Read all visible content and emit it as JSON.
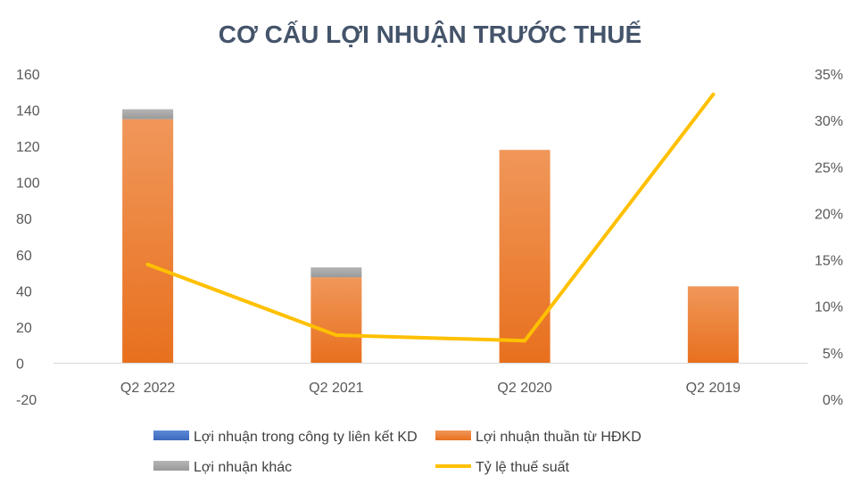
{
  "chart_data": {
    "type": "bar",
    "title": "CƠ CẤU LỢI NHUẬN TRƯỚC THUẾ",
    "categories": [
      "Q2 2022",
      "Q2 2021",
      "Q2 2020",
      "Q2 2019"
    ],
    "stacked": true,
    "series": [
      {
        "name": "Lợi nhuận trong công ty liên kết KD",
        "type": "bar",
        "axis": "left",
        "color": "#4472c4",
        "values": [
          0,
          0,
          0,
          0
        ]
      },
      {
        "name": "Lợi nhuận thuần từ HĐKD",
        "type": "bar",
        "axis": "left",
        "color": "#ed7d31",
        "values": [
          135,
          47.5,
          118,
          42.5
        ]
      },
      {
        "name": "Lợi nhuận khác",
        "type": "bar",
        "axis": "left",
        "color": "#a5a5a5",
        "values": [
          5.5,
          5.5,
          0,
          0
        ]
      },
      {
        "name": "Tỷ lệ thuế suất",
        "type": "line",
        "axis": "right",
        "color": "#ffc000",
        "values": [
          0.145,
          0.069,
          0.063,
          0.328
        ]
      }
    ],
    "y_left": {
      "min": -20,
      "max": 160,
      "step": 20,
      "ticks": [
        "-20",
        "0",
        "20",
        "40",
        "60",
        "80",
        "100",
        "120",
        "140",
        "160"
      ]
    },
    "y_right": {
      "min": 0,
      "max": 0.35,
      "step": 0.05,
      "ticks": [
        "0%",
        "5%",
        "10%",
        "15%",
        "20%",
        "25%",
        "30%",
        "35%"
      ]
    },
    "grid": false,
    "legend_position": "bottom",
    "legend": [
      {
        "label": "Lợi nhuận trong công ty liên kết KD",
        "kind": "bar",
        "color": "#4472c4"
      },
      {
        "label": "Lợi nhuận thuần từ HĐKD",
        "kind": "bar",
        "color": "#ed7d31"
      },
      {
        "label": "Lợi nhuận khác",
        "kind": "bar",
        "color": "#a5a5a5"
      },
      {
        "label": "Tỷ lệ thuế suất",
        "kind": "line",
        "color": "#ffc000"
      }
    ]
  }
}
